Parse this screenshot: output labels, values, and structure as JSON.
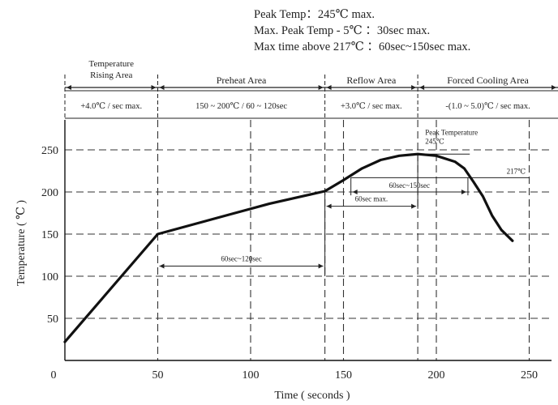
{
  "chart_data": {
    "type": "line",
    "title_lines": [
      "Peak Temp：245℃ max.",
      "Max. Peak Temp - 5℃ ：30sec max.",
      "Max time above 217℃ ：60sec~150sec max."
    ],
    "xlabel": "Time ( seconds )",
    "ylabel": "Temperature ( ℃ )",
    "xlim": [
      0,
      270
    ],
    "ylim": [
      0,
      280
    ],
    "x_ticks": [
      0,
      50,
      100,
      150,
      200,
      250
    ],
    "y_ticks": [
      50,
      100,
      150,
      200,
      250
    ],
    "grid": true,
    "series": [
      {
        "x": [
          0,
          50,
          70,
          90,
          110,
          130,
          140,
          150,
          160,
          170,
          180,
          190,
          200,
          210,
          215,
          220,
          225,
          230,
          235,
          241
        ],
        "values": [
          22,
          150,
          162,
          174,
          186,
          196,
          201,
          214,
          228,
          238,
          243,
          245,
          243,
          236,
          228,
          212,
          195,
          172,
          155,
          142
        ]
      }
    ],
    "zones": [
      {
        "title": "Temperature\nRising Area",
        "rate": "+4.0℃ / sec max.",
        "x_start": -5,
        "x_end": 50
      },
      {
        "title": "Preheat Area",
        "rate": "150 ~ 200℃ / 60 ~ 120sec",
        "x_start": 50,
        "x_end": 140
      },
      {
        "title": "Reflow Area",
        "rate": "+3.0℃ / sec max.",
        "x_start": 140,
        "x_end": 190
      },
      {
        "title": "Forced Cooling Area",
        "rate": "-(1.0 ~ 5.0)℃ / sec max.",
        "x_start": 190,
        "x_end": 270
      }
    ],
    "annotations": {
      "preheat_duration": "60sec~120sec",
      "reflow_60sec": "60sec max.",
      "above217": "60sec~150sec",
      "peak_label": "Peak Temperature\n245℃",
      "label_217": "217℃"
    }
  }
}
